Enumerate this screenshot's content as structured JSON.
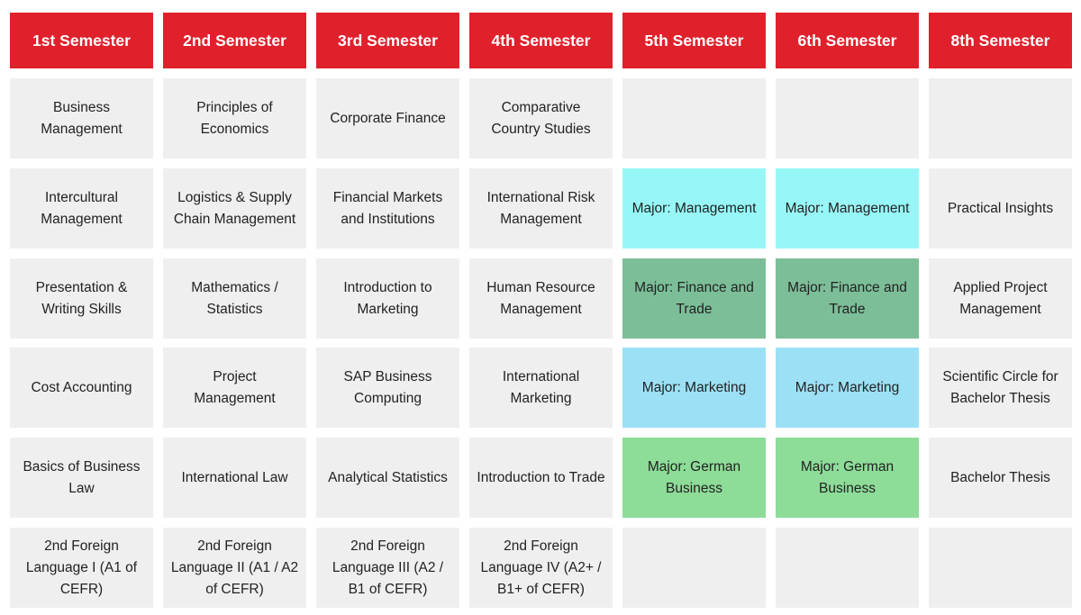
{
  "headers": [
    "1st Semester",
    "2nd Semester",
    "3rd Semester",
    "4th Semester",
    "5th Semester",
    "6th Semester",
    "8th Semester"
  ],
  "rows": [
    [
      "Business Management",
      "Principles of Economics",
      "Corporate Finance",
      "Comparative Country Studies",
      "",
      "",
      ""
    ],
    [
      "Intercultural Management",
      "Logistics & Supply Chain Management",
      "Financial Markets and Institutions",
      "International Risk Management",
      "Major: Management",
      "Major: Management",
      "Practical Insights"
    ],
    [
      "Presentation & Writing Skills",
      "Mathematics / Statistics",
      "Introduction to Marketing",
      "Human Resource Management",
      "Major: Finance and Trade",
      "Major: Finance and Trade",
      "Applied Project Management"
    ],
    [
      "Cost Accounting",
      "Project Management",
      "SAP Business Computing",
      "International Marketing",
      "Major: Marketing",
      "Major: Marketing",
      "Scientific Circle for Bachelor Thesis"
    ],
    [
      "Basics of Business Law",
      "International Law",
      "Analytical Statistics",
      "Introduction to Trade",
      "Major: German Business",
      "Major: German Business",
      "Bachelor Thesis"
    ],
    [
      "2nd Foreign Language I (A1 of CEFR)",
      "2nd Foreign Language II (A1 / A2 of CEFR)",
      "2nd Foreign Language III (A2 / B1 of CEFR)",
      "2nd Foreign Language IV (A2+ / B1+ of CEFR)",
      "",
      "",
      ""
    ]
  ],
  "colors": {
    "header": "#e0202b",
    "cell": "#efefef",
    "major_management": "#97f7f7",
    "major_finance_trade": "#7cbe98",
    "major_marketing": "#9ce0f5",
    "major_german_business": "#8ddc98"
  }
}
